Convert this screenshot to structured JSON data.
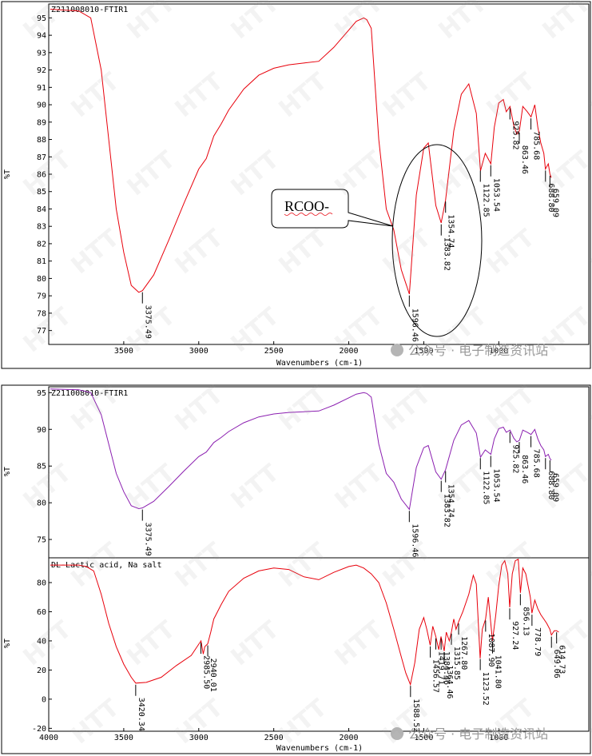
{
  "chart_data": [
    {
      "type": "line",
      "title": "Z211008010-FTIR1",
      "xlabel": "Wavenumbers (cm-1)",
      "ylabel": "%T",
      "xlim": [
        4000,
        400
      ],
      "ylim": [
        76.2,
        95.8
      ],
      "x_ticks": [
        3500,
        3000,
        2500,
        2000,
        1500,
        1000
      ],
      "y_ticks": [
        77,
        78,
        79,
        80,
        81,
        82,
        83,
        84,
        85,
        86,
        87,
        88,
        89,
        90,
        91,
        92,
        93,
        94,
        95
      ],
      "series": [
        {
          "color": "#e8000b",
          "x": [
            3990,
            3800,
            3720,
            3650,
            3600,
            3550,
            3500,
            3450,
            3400,
            3375,
            3300,
            3200,
            3100,
            3000,
            2950,
            2900,
            2850,
            2800,
            2700,
            2600,
            2500,
            2400,
            2300,
            2200,
            2100,
            2000,
            1950,
            1900,
            1880,
            1850,
            1800,
            1750,
            1700,
            1650,
            1596,
            1550,
            1500,
            1470,
            1420,
            1384,
            1355,
            1300,
            1250,
            1200,
            1150,
            1122,
            1090,
            1053,
            1030,
            1000,
            970,
            950,
            925,
            900,
            880,
            863,
            840,
            810,
            785,
            760,
            740,
            720,
            700,
            689,
            670,
            659,
            650
          ],
          "values": [
            95.5,
            95.4,
            95.0,
            92.0,
            88.0,
            84.0,
            81.5,
            79.6,
            79.2,
            79.3,
            80.2,
            82.2,
            84.3,
            86.3,
            86.9,
            88.2,
            88.9,
            89.7,
            90.9,
            91.7,
            92.1,
            92.3,
            92.4,
            92.5,
            93.3,
            94.3,
            94.8,
            95.0,
            94.9,
            94.4,
            88.0,
            84.0,
            82.8,
            80.5,
            79.1,
            84.8,
            87.5,
            87.8,
            84.2,
            83.2,
            84.5,
            88.5,
            90.6,
            91.2,
            89.5,
            86.2,
            87.2,
            86.6,
            88.7,
            90.1,
            90.3,
            89.6,
            89.9,
            88.8,
            88.3,
            88.5,
            89.9,
            89.6,
            89.3,
            90.0,
            88.7,
            87.8,
            87.2,
            86.3,
            86.6,
            86.0,
            85.8
          ]
        }
      ],
      "peak_labels": [
        "3375.49",
        "1596.46",
        "1383.82",
        "1354.74",
        "1122.85",
        "1053.54",
        "925.82",
        "863.46",
        "785.68",
        "688.80",
        "659.09"
      ],
      "peak_x": [
        3375.49,
        1596.46,
        1383.82,
        1354.74,
        1122.85,
        1053.54,
        925.82,
        863.46,
        785.68,
        688.8,
        659.09
      ],
      "annotation": "RCOO-"
    },
    {
      "type": "line",
      "title": "Z211008010-FTIR1",
      "xlabel": "",
      "ylabel": "%T",
      "xlim": [
        4000,
        400
      ],
      "ylim": [
        72.5,
        95.8
      ],
      "x_ticks": [],
      "y_ticks": [
        75,
        80,
        85,
        90,
        95
      ],
      "series": [
        {
          "color": "#8b1fb0",
          "x": [
            3990,
            3800,
            3720,
            3650,
            3600,
            3550,
            3500,
            3450,
            3400,
            3375,
            3300,
            3200,
            3100,
            3000,
            2950,
            2900,
            2850,
            2800,
            2700,
            2600,
            2500,
            2400,
            2300,
            2200,
            2100,
            2000,
            1950,
            1900,
            1880,
            1850,
            1800,
            1750,
            1700,
            1650,
            1596,
            1550,
            1500,
            1470,
            1420,
            1384,
            1355,
            1300,
            1250,
            1200,
            1150,
            1122,
            1090,
            1053,
            1030,
            1000,
            970,
            950,
            925,
            900,
            880,
            863,
            840,
            810,
            785,
            760,
            740,
            720,
            700,
            689,
            670,
            659,
            650
          ],
          "values": [
            95.5,
            95.4,
            95.0,
            92.0,
            88.0,
            84.0,
            81.5,
            79.6,
            79.2,
            79.3,
            80.2,
            82.2,
            84.3,
            86.3,
            86.9,
            88.2,
            88.9,
            89.7,
            90.9,
            91.7,
            92.1,
            92.3,
            92.4,
            92.5,
            93.3,
            94.3,
            94.8,
            95.0,
            94.9,
            94.4,
            88.0,
            84.0,
            82.8,
            80.5,
            79.1,
            84.8,
            87.5,
            87.8,
            84.2,
            83.2,
            84.5,
            88.5,
            90.6,
            91.2,
            89.5,
            86.2,
            87.2,
            86.6,
            88.7,
            90.1,
            90.3,
            89.6,
            89.9,
            88.8,
            88.3,
            88.5,
            89.9,
            89.6,
            89.3,
            90.0,
            88.7,
            87.8,
            87.2,
            86.3,
            86.6,
            86.0,
            85.8
          ]
        }
      ],
      "peak_labels": [
        "3375.49",
        "1596.46",
        "1383.82",
        "1354.74",
        "1122.85",
        "1053.54",
        "925.82",
        "863.46",
        "785.68",
        "688.80",
        "659.09"
      ],
      "peak_x": [
        3375.49,
        1596.46,
        1383.82,
        1354.74,
        1122.85,
        1053.54,
        925.82,
        863.46,
        785.68,
        688.8,
        659.09
      ]
    },
    {
      "type": "line",
      "title": "DL-Lactic acid, Na salt",
      "xlabel": "Wavenumbers (cm-1)",
      "ylabel": "%T",
      "xlim": [
        4000,
        400
      ],
      "ylim": [
        -22,
        97
      ],
      "x_ticks": [
        4000,
        3500,
        3000,
        2500,
        2000,
        1500,
        1000
      ],
      "y_ticks": [
        -20,
        0,
        20,
        40,
        60,
        80
      ],
      "series": [
        {
          "color": "#e8000b",
          "x": [
            3990,
            3800,
            3750,
            3700,
            3650,
            3600,
            3550,
            3500,
            3450,
            3420,
            3350,
            3250,
            3150,
            3050,
            2985,
            2970,
            2960,
            2940,
            2920,
            2900,
            2850,
            2800,
            2700,
            2600,
            2500,
            2400,
            2300,
            2200,
            2100,
            2000,
            1950,
            1900,
            1850,
            1800,
            1750,
            1700,
            1650,
            1620,
            1589,
            1560,
            1530,
            1500,
            1480,
            1457,
            1440,
            1420,
            1400,
            1385,
            1364,
            1350,
            1330,
            1316,
            1300,
            1285,
            1268,
            1240,
            1200,
            1170,
            1150,
            1124,
            1110,
            1088,
            1070,
            1042,
            1020,
            1000,
            980,
            960,
            940,
            927,
            910,
            890,
            870,
            856,
            840,
            820,
            790,
            779,
            760,
            740,
            720,
            700,
            680,
            660,
            649,
            630,
            615,
            600
          ],
          "values": [
            92,
            92,
            91,
            88,
            72,
            52,
            36,
            24,
            15,
            11,
            11.5,
            15,
            23,
            30,
            40,
            31,
            36,
            38,
            46,
            55,
            65,
            74,
            83,
            88,
            90,
            89,
            84,
            82,
            87,
            91,
            92,
            90,
            86,
            80,
            66,
            48,
            29,
            18,
            10,
            25,
            48,
            56,
            48,
            37,
            50,
            43,
            34,
            43,
            33,
            46,
            40,
            46,
            55,
            48,
            53,
            60,
            72,
            85,
            79,
            28,
            48,
            55,
            70,
            40,
            58,
            78,
            92,
            95,
            86,
            63,
            86,
            95,
            96,
            73,
            90,
            86,
            70,
            59,
            68,
            62,
            58,
            55,
            52,
            48,
            44,
            47,
            47,
            46
          ]
        }
      ],
      "peak_labels": [
        "3420.34",
        "2985.50",
        "2940.01",
        "1588.52",
        "1456.57",
        "1419.71",
        "1364.46",
        "1384.46",
        "1315.85",
        "1267.80",
        "1123.52",
        "1087.90",
        "1041.80",
        "927.24",
        "856.13",
        "778.79",
        "649.06",
        "614.73"
      ],
      "peak_x": [
        3420.34,
        2985.5,
        2940.01,
        1588.52,
        1456.57,
        1419.71,
        1364.46,
        1384.46,
        1315.85,
        1267.8,
        1123.52,
        1087.9,
        1041.8,
        927.24,
        856.13,
        778.79,
        649.06,
        614.73
      ]
    }
  ],
  "watermark": {
    "brand": "HTT",
    "caption": "公众号 · 电子制造资讯站"
  }
}
